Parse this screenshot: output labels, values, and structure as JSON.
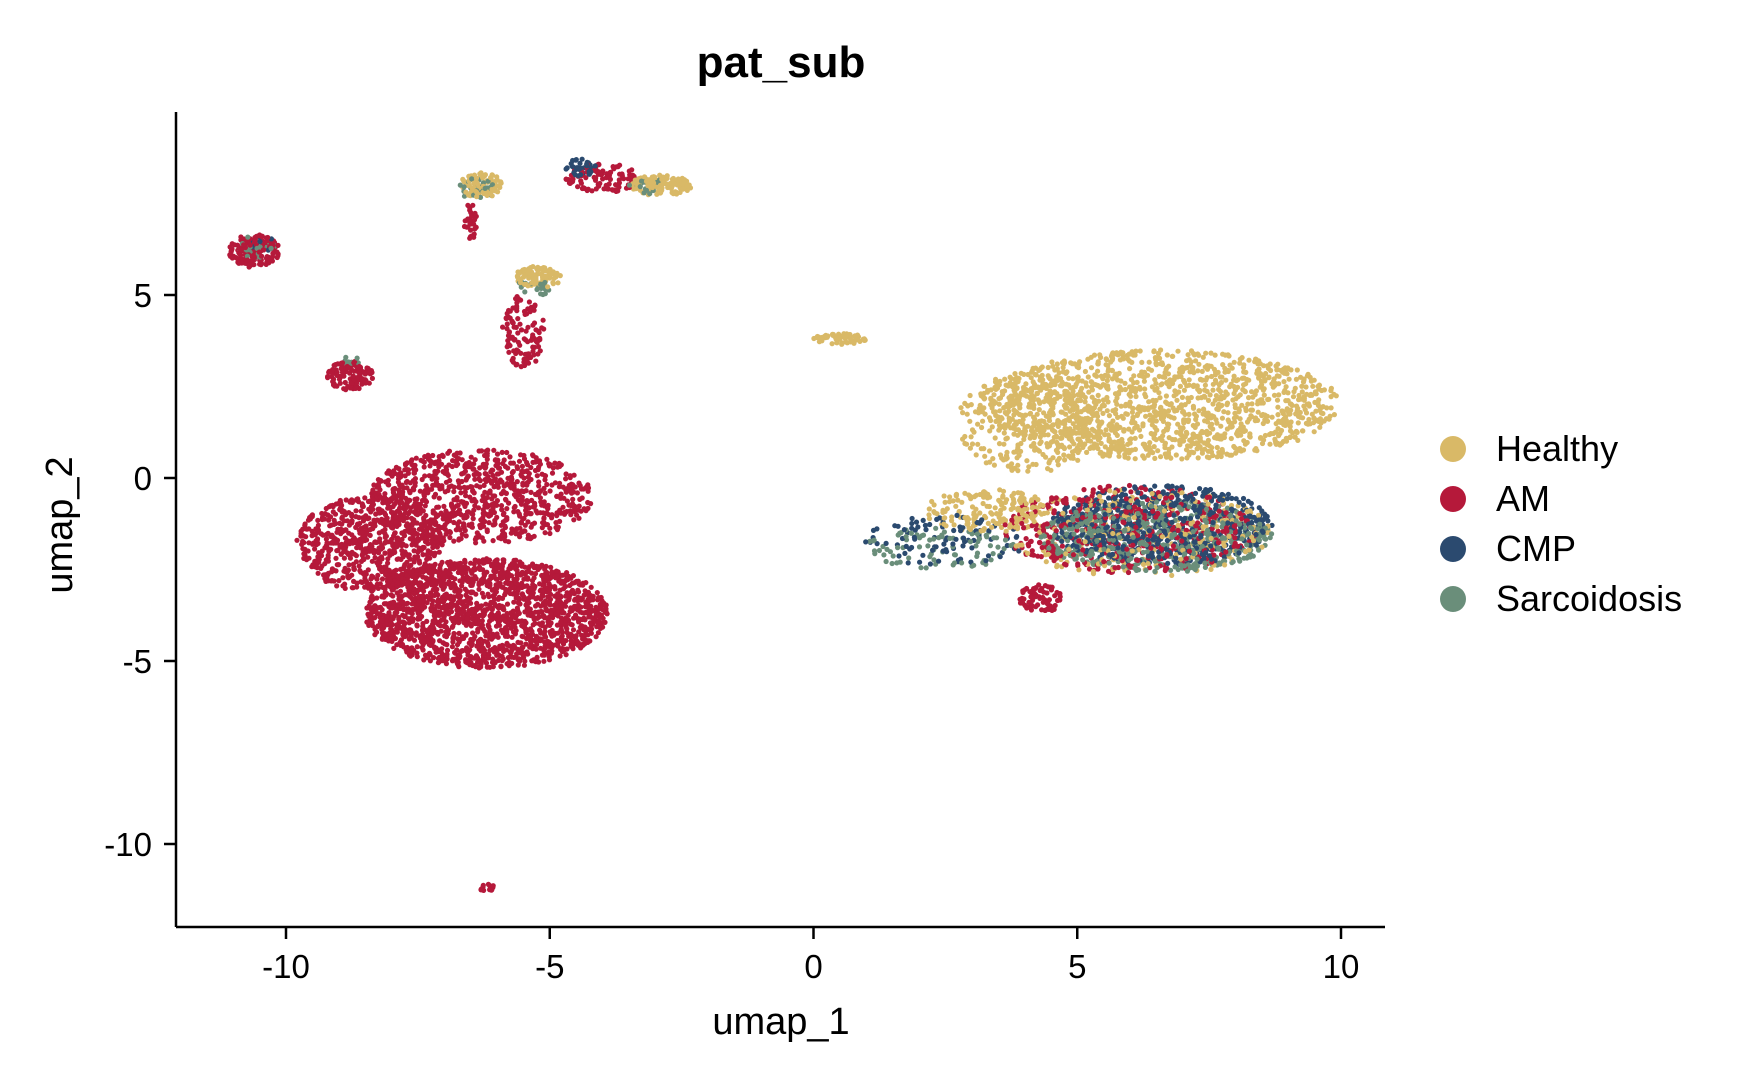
{
  "chart_data": {
    "type": "scatter",
    "title": "pat_sub",
    "xlabel": "umap_1",
    "ylabel": "umap_2",
    "xlim": [
      -12.2,
      10.8
    ],
    "ylim": [
      -12.3,
      9.9
    ],
    "xticks": [
      -10,
      -5,
      0,
      5,
      10
    ],
    "xtick_labels": [
      "-10",
      "-5",
      "0",
      "5",
      "10"
    ],
    "yticks": [
      5,
      0,
      -5,
      -10
    ],
    "ytick_labels": [
      "5",
      "0",
      "-5",
      "-10"
    ],
    "grid": false,
    "legend_position": "right",
    "series": [
      {
        "name": "Healthy",
        "color": "#D9B967",
        "regions": [
          {
            "cx": 6.6,
            "cy": 2.0,
            "rx": 3.4,
            "ry": 1.5,
            "n": 1300
          },
          {
            "cx": 4.1,
            "cy": 1.5,
            "rx": 1.4,
            "ry": 1.4,
            "n": 300
          },
          {
            "cx": 3.3,
            "cy": -0.9,
            "rx": 1.2,
            "ry": 0.6,
            "n": 170
          },
          {
            "cx": 6.2,
            "cy": -1.5,
            "rx": 2.5,
            "ry": 1.2,
            "n": 260
          },
          {
            "cx": -6.3,
            "cy": 8.0,
            "rx": 0.4,
            "ry": 0.35,
            "n": 90
          },
          {
            "cx": -2.9,
            "cy": 8.0,
            "rx": 0.6,
            "ry": 0.28,
            "n": 130
          },
          {
            "cx": -5.2,
            "cy": 5.5,
            "rx": 0.45,
            "ry": 0.3,
            "n": 100
          },
          {
            "cx": 0.5,
            "cy": 3.8,
            "rx": 0.5,
            "ry": 0.15,
            "n": 60
          }
        ]
      },
      {
        "name": "AM",
        "color": "#B5193A",
        "regions": [
          {
            "cx": -6.2,
            "cy": -3.7,
            "rx": 2.3,
            "ry": 1.5,
            "n": 1700
          },
          {
            "cx": -8.4,
            "cy": -1.8,
            "rx": 1.4,
            "ry": 1.3,
            "n": 700
          },
          {
            "cx": -6.3,
            "cy": -0.5,
            "rx": 2.1,
            "ry": 1.3,
            "n": 800
          },
          {
            "cx": -10.6,
            "cy": 6.2,
            "rx": 0.5,
            "ry": 0.45,
            "n": 150
          },
          {
            "cx": -8.8,
            "cy": 2.8,
            "rx": 0.45,
            "ry": 0.4,
            "n": 110
          },
          {
            "cx": -5.5,
            "cy": 4.0,
            "rx": 0.4,
            "ry": 1.0,
            "n": 110
          },
          {
            "cx": -6.5,
            "cy": 7.0,
            "rx": 0.12,
            "ry": 0.5,
            "n": 30
          },
          {
            "cx": -4.0,
            "cy": 8.2,
            "rx": 0.7,
            "ry": 0.4,
            "n": 100
          },
          {
            "cx": 6.0,
            "cy": -1.4,
            "rx": 2.4,
            "ry": 1.2,
            "n": 450
          },
          {
            "cx": 4.3,
            "cy": -3.3,
            "rx": 0.4,
            "ry": 0.4,
            "n": 70
          },
          {
            "cx": -6.2,
            "cy": -11.2,
            "rx": 0.15,
            "ry": 0.12,
            "n": 14
          }
        ]
      },
      {
        "name": "CMP",
        "color": "#2B4A6F",
        "regions": [
          {
            "cx": 6.6,
            "cy": -1.3,
            "rx": 2.1,
            "ry": 1.1,
            "n": 600
          },
          {
            "cx": 2.5,
            "cy": -1.7,
            "rx": 1.6,
            "ry": 0.7,
            "n": 90
          },
          {
            "cx": -4.4,
            "cy": 8.5,
            "rx": 0.3,
            "ry": 0.25,
            "n": 35
          },
          {
            "cx": -10.4,
            "cy": 6.4,
            "rx": 0.3,
            "ry": 0.2,
            "n": 12
          }
        ]
      },
      {
        "name": "Sarcoidosis",
        "color": "#6A8E7A",
        "regions": [
          {
            "cx": 6.5,
            "cy": -1.6,
            "rx": 2.2,
            "ry": 1.0,
            "n": 550
          },
          {
            "cx": 2.4,
            "cy": -1.9,
            "rx": 1.4,
            "ry": 0.6,
            "n": 90
          },
          {
            "cx": -10.6,
            "cy": 6.3,
            "rx": 0.4,
            "ry": 0.3,
            "n": 25
          },
          {
            "cx": -6.4,
            "cy": 7.9,
            "rx": 0.35,
            "ry": 0.3,
            "n": 30
          },
          {
            "cx": -5.3,
            "cy": 5.2,
            "rx": 0.35,
            "ry": 0.25,
            "n": 25
          },
          {
            "cx": -8.8,
            "cy": 3.2,
            "rx": 0.2,
            "ry": 0.15,
            "n": 8
          },
          {
            "cx": -3.2,
            "cy": 8.0,
            "rx": 0.4,
            "ry": 0.25,
            "n": 20
          }
        ]
      }
    ]
  }
}
